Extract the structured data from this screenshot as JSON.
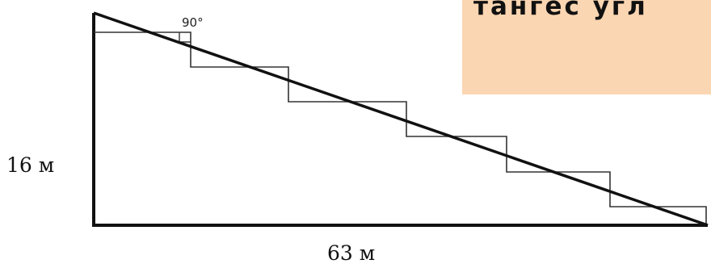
{
  "labels": {
    "angle": "90°",
    "height": "16 м",
    "base": "63 м"
  },
  "callout": {
    "text": "тангес угл"
  },
  "colors": {
    "stroke": "#111111",
    "callout_bg": "#fbd6b2"
  }
}
